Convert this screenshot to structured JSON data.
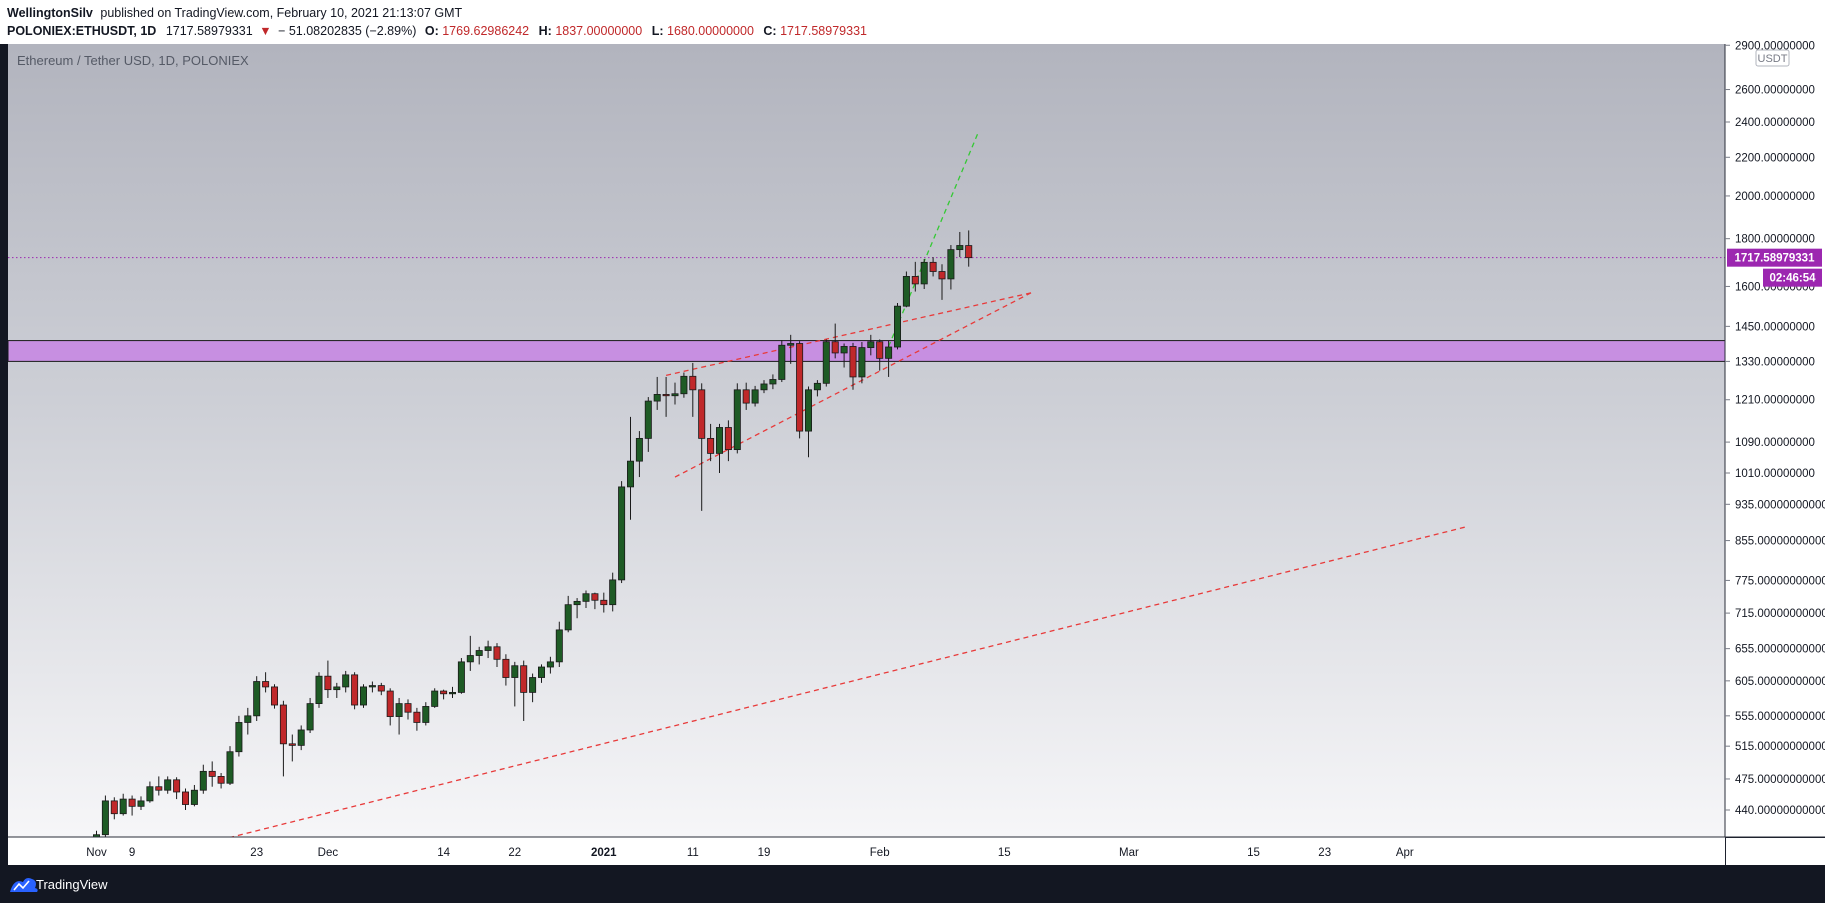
{
  "header": {
    "author": "WellingtonSilv",
    "published_text": "published on TradingView.com, February 10, 2021 21:13:07 GMT",
    "symbol_line": "POLONIEX:ETHUSDT, 1D",
    "last_price": "1717.58979331",
    "change": "− 51.08202835 (−2.89%)",
    "open_label": "O:",
    "open_value": "1769.62986242",
    "high_label": "H:",
    "high_value": "1837.00000000",
    "low_label": "L:",
    "low_value": "1680.00000000",
    "close_label": "C:",
    "close_value": "1717.58979331"
  },
  "chart_title": "Ethereum / Tether USD, 1D, POLONIEX",
  "currency_label": "USDT",
  "price_tag": "1717.58979331",
  "countdown_tag": "02:46:54",
  "footer_brand": "TradingView",
  "colors": {
    "up": "#1e5b25",
    "down": "#c0282a",
    "highlight": "#c57be6",
    "tag": "#9c27b0",
    "trend_red": "#e83a3a",
    "trend_green": "#34c934"
  },
  "chart_data": {
    "type": "candlestick",
    "interval": "1D",
    "y_scale": "log",
    "y_axis_ticks": [
      "2900.00000000",
      "2600.00000000",
      "2400.00000000",
      "2200.00000000",
      "2000.00000000",
      "1800.00000000",
      "1600.00000000",
      "1450.00000000",
      "1330.00000000",
      "1210.00000000",
      "1090.00000000",
      "1010.00000000",
      "935.00000000000",
      "855.00000000000",
      "775.00000000000",
      "715.00000000000",
      "655.00000000000",
      "605.00000000000",
      "555.00000000000",
      "515.00000000000",
      "475.00000000000",
      "440.00000000000"
    ],
    "x_axis_labels": [
      {
        "label": "Nov",
        "date": "2020-11-05"
      },
      {
        "label": "9",
        "date": "2020-11-09"
      },
      {
        "label": "23",
        "date": "2020-11-23"
      },
      {
        "label": "Dec",
        "date": "2020-12-01"
      },
      {
        "label": "14",
        "date": "2020-12-14"
      },
      {
        "label": "22",
        "date": "2020-12-22"
      },
      {
        "label": "2021",
        "date": "2021-01-01"
      },
      {
        "label": "11",
        "date": "2021-01-11"
      },
      {
        "label": "19",
        "date": "2021-01-19"
      },
      {
        "label": "Feb",
        "date": "2021-02-01"
      },
      {
        "label": "15",
        "date": "2021-02-15"
      },
      {
        "label": "Mar",
        "date": "2021-03-01"
      },
      {
        "label": "15",
        "date": "2021-03-15"
      },
      {
        "label": "23",
        "date": "2021-03-23"
      },
      {
        "label": "Apr",
        "date": "2021-04-01"
      }
    ],
    "candles": [
      [
        "2020-11-05",
        405,
        418,
        400,
        414
      ],
      [
        "2020-11-06",
        414,
        456,
        410,
        450
      ],
      [
        "2020-11-07",
        450,
        454,
        430,
        436
      ],
      [
        "2020-11-08",
        436,
        458,
        434,
        452
      ],
      [
        "2020-11-09",
        452,
        456,
        434,
        444
      ],
      [
        "2020-11-10",
        444,
        455,
        440,
        450
      ],
      [
        "2020-11-11",
        450,
        472,
        448,
        466
      ],
      [
        "2020-11-12",
        466,
        478,
        456,
        462
      ],
      [
        "2020-11-13",
        462,
        478,
        458,
        474
      ],
      [
        "2020-11-14",
        474,
        477,
        452,
        460
      ],
      [
        "2020-11-15",
        460,
        464,
        440,
        446
      ],
      [
        "2020-11-16",
        446,
        468,
        444,
        462
      ],
      [
        "2020-11-17",
        462,
        492,
        458,
        484
      ],
      [
        "2020-11-18",
        484,
        496,
        466,
        478
      ],
      [
        "2020-11-19",
        478,
        482,
        464,
        470
      ],
      [
        "2020-11-20",
        470,
        515,
        468,
        508
      ],
      [
        "2020-11-21",
        508,
        555,
        502,
        546
      ],
      [
        "2020-11-22",
        546,
        566,
        530,
        555
      ],
      [
        "2020-11-23",
        555,
        612,
        548,
        604
      ],
      [
        "2020-11-24",
        604,
        618,
        588,
        596
      ],
      [
        "2020-11-25",
        596,
        600,
        565,
        570
      ],
      [
        "2020-11-26",
        570,
        576,
        478,
        518
      ],
      [
        "2020-11-27",
        518,
        530,
        496,
        516
      ],
      [
        "2020-11-28",
        516,
        542,
        510,
        536
      ],
      [
        "2020-11-29",
        536,
        580,
        532,
        572
      ],
      [
        "2020-11-30",
        572,
        618,
        566,
        612
      ],
      [
        "2020-12-01",
        612,
        636,
        580,
        592
      ],
      [
        "2020-12-02",
        592,
        602,
        580,
        596
      ],
      [
        "2020-12-03",
        596,
        620,
        588,
        614
      ],
      [
        "2020-12-04",
        614,
        618,
        564,
        570
      ],
      [
        "2020-12-05",
        570,
        600,
        566,
        596
      ],
      [
        "2020-12-06",
        596,
        604,
        588,
        598
      ],
      [
        "2020-12-07",
        598,
        602,
        584,
        590
      ],
      [
        "2020-12-08",
        590,
        594,
        542,
        554
      ],
      [
        "2020-12-09",
        554,
        580,
        530,
        572
      ],
      [
        "2020-12-10",
        572,
        578,
        550,
        560
      ],
      [
        "2020-12-11",
        560,
        566,
        535,
        546
      ],
      [
        "2020-12-12",
        546,
        574,
        542,
        568
      ],
      [
        "2020-12-13",
        568,
        594,
        566,
        590
      ],
      [
        "2020-12-14",
        590,
        592,
        578,
        586
      ],
      [
        "2020-12-15",
        586,
        596,
        580,
        588
      ],
      [
        "2020-12-16",
        588,
        640,
        586,
        634
      ],
      [
        "2020-12-17",
        634,
        676,
        620,
        644
      ],
      [
        "2020-12-18",
        644,
        658,
        630,
        652
      ],
      [
        "2020-12-19",
        652,
        668,
        640,
        658
      ],
      [
        "2020-12-20",
        658,
        664,
        626,
        638
      ],
      [
        "2020-12-21",
        638,
        646,
        598,
        610
      ],
      [
        "2020-12-22",
        610,
        634,
        568,
        628
      ],
      [
        "2020-12-23",
        628,
        636,
        548,
        588
      ],
      [
        "2020-12-24",
        588,
        616,
        574,
        610
      ],
      [
        "2020-12-25",
        610,
        630,
        602,
        626
      ],
      [
        "2020-12-26",
        626,
        642,
        616,
        634
      ],
      [
        "2020-12-27",
        634,
        700,
        626,
        686
      ],
      [
        "2020-12-28",
        686,
        746,
        682,
        730
      ],
      [
        "2020-12-29",
        730,
        742,
        706,
        736
      ],
      [
        "2020-12-30",
        736,
        756,
        724,
        750
      ],
      [
        "2020-12-31",
        750,
        752,
        722,
        738
      ],
      [
        "2021-01-01",
        738,
        752,
        716,
        730
      ],
      [
        "2021-01-02",
        730,
        790,
        718,
        776
      ],
      [
        "2021-01-03",
        776,
        990,
        770,
        976
      ],
      [
        "2021-01-04",
        976,
        1160,
        900,
        1040
      ],
      [
        "2021-01-05",
        1040,
        1120,
        1000,
        1100
      ],
      [
        "2021-01-06",
        1100,
        1218,
        1064,
        1206
      ],
      [
        "2021-01-07",
        1206,
        1280,
        1180,
        1226
      ],
      [
        "2021-01-08",
        1226,
        1280,
        1160,
        1222
      ],
      [
        "2021-01-09",
        1222,
        1262,
        1196,
        1228
      ],
      [
        "2021-01-10",
        1228,
        1294,
        1216,
        1282
      ],
      [
        "2021-01-11",
        1282,
        1325,
        1160,
        1240
      ],
      [
        "2021-01-12",
        1240,
        1260,
        920,
        1100
      ],
      [
        "2021-01-13",
        1100,
        1140,
        1040,
        1060
      ],
      [
        "2021-01-14",
        1060,
        1140,
        1010,
        1130
      ],
      [
        "2021-01-15",
        1130,
        1150,
        1040,
        1070
      ],
      [
        "2021-01-16",
        1070,
        1260,
        1060,
        1240
      ],
      [
        "2021-01-17",
        1240,
        1262,
        1180,
        1200
      ],
      [
        "2021-01-18",
        1200,
        1252,
        1190,
        1240
      ],
      [
        "2021-01-19",
        1240,
        1270,
        1230,
        1258
      ],
      [
        "2021-01-20",
        1258,
        1288,
        1242,
        1272
      ],
      [
        "2021-01-21",
        1272,
        1402,
        1264,
        1384
      ],
      [
        "2021-01-22",
        1384,
        1420,
        1322,
        1390
      ],
      [
        "2021-01-23",
        1390,
        1398,
        1100,
        1120
      ],
      [
        "2021-01-24",
        1120,
        1250,
        1050,
        1240
      ],
      [
        "2021-01-25",
        1240,
        1270,
        1220,
        1260
      ],
      [
        "2021-01-26",
        1260,
        1404,
        1250,
        1396
      ],
      [
        "2021-01-27",
        1396,
        1460,
        1340,
        1358
      ],
      [
        "2021-01-28",
        1358,
        1390,
        1310,
        1380
      ],
      [
        "2021-01-29",
        1380,
        1392,
        1240,
        1280
      ],
      [
        "2021-01-30",
        1280,
        1395,
        1260,
        1376
      ],
      [
        "2021-01-31",
        1376,
        1420,
        1350,
        1396
      ],
      [
        "2021-02-01",
        1396,
        1404,
        1300,
        1340
      ],
      [
        "2021-02-02",
        1340,
        1400,
        1280,
        1378
      ],
      [
        "2021-02-03",
        1378,
        1536,
        1370,
        1524
      ],
      [
        "2021-02-04",
        1524,
        1660,
        1520,
        1640
      ],
      [
        "2021-02-05",
        1640,
        1700,
        1580,
        1610
      ],
      [
        "2021-02-06",
        1610,
        1712,
        1590,
        1698
      ],
      [
        "2021-02-07",
        1698,
        1720,
        1640,
        1660
      ],
      [
        "2021-02-08",
        1660,
        1690,
        1548,
        1630
      ],
      [
        "2021-02-09",
        1630,
        1772,
        1588,
        1752
      ],
      [
        "2021-02-10",
        1752,
        1830,
        1720,
        1770
      ],
      [
        "2021-02-11",
        1769.63,
        1837,
        1680,
        1717.59
      ]
    ],
    "current_price": 1717.58979331,
    "support_zone": [
      1330,
      1400
    ],
    "trend_lines": [
      {
        "color": "red",
        "style": "dashed",
        "from": [
          "2020-11-15",
          400
        ],
        "to": [
          "2021-04-08",
          885
        ]
      },
      {
        "color": "red",
        "style": "dashed",
        "from": [
          "2021-01-09",
          1000
        ],
        "to": [
          "2021-02-18",
          1575
        ]
      },
      {
        "color": "red",
        "style": "dashed",
        "from": [
          "2021-01-08",
          1285
        ],
        "to": [
          "2021-02-18",
          1575
        ]
      },
      {
        "color": "green",
        "style": "dashed",
        "from": [
          "2021-02-02",
          1380
        ],
        "to": [
          "2021-02-12",
          2330
        ]
      }
    ]
  }
}
